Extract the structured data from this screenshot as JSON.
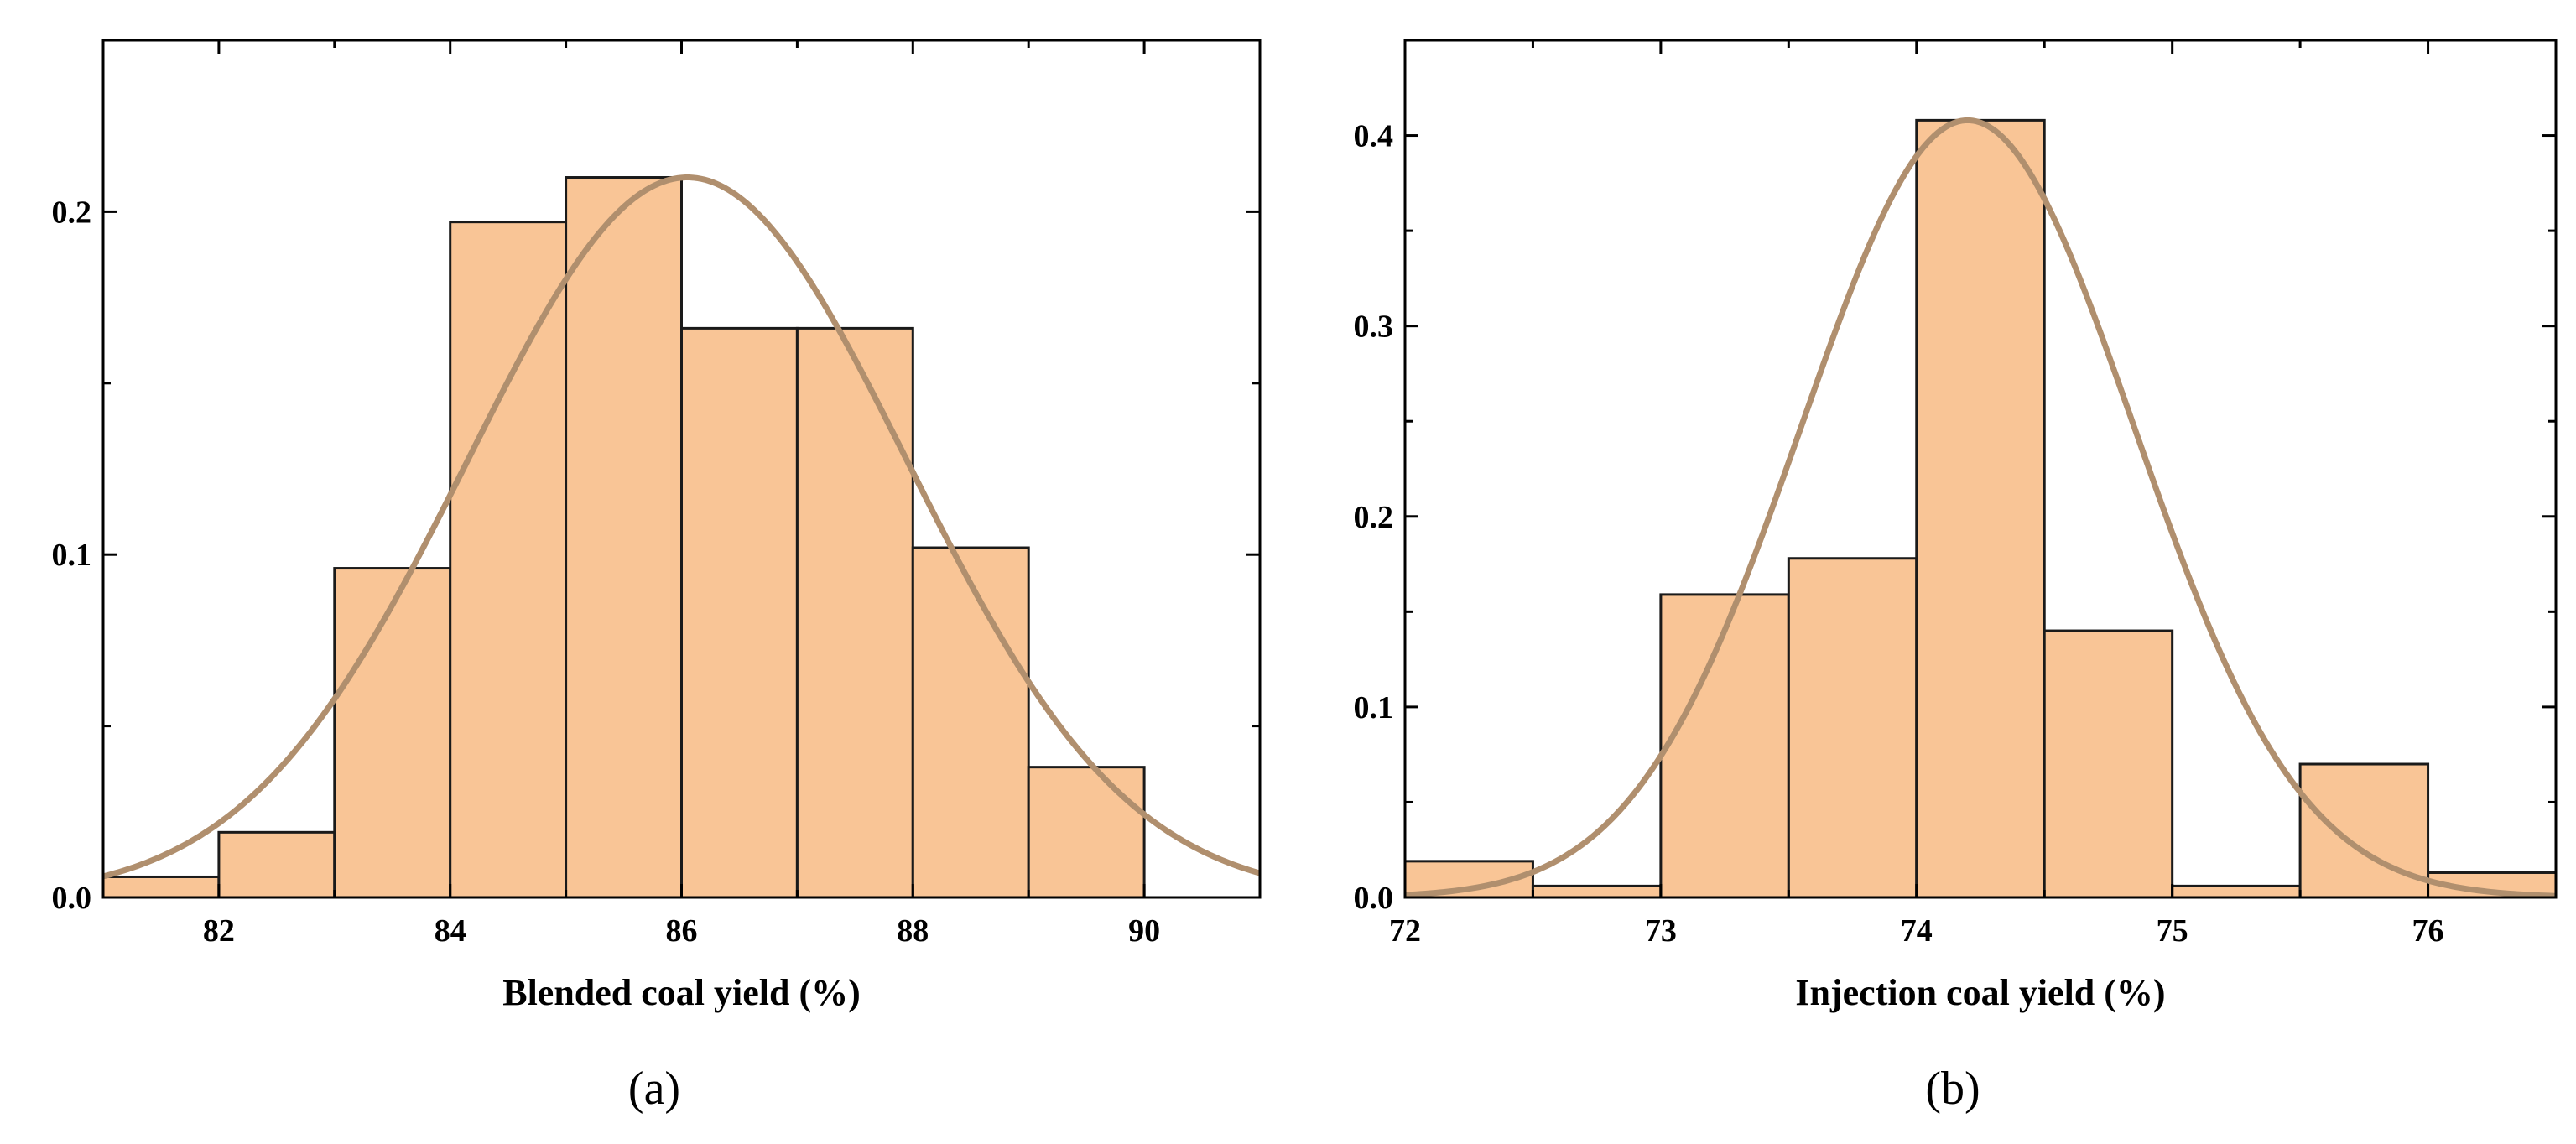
{
  "colors": {
    "bar_fill": "#F9C596",
    "bar_stroke": "#1a1a1a",
    "curve": "#B08F6E",
    "axis": "#000000"
  },
  "chart_data": [
    {
      "type": "bar",
      "subtype": "histogram_with_normal_fit",
      "panel_label": "(a)",
      "title": "",
      "xlabel": "Blended coal yield (%)",
      "ylabel": "",
      "xlim": [
        81,
        91
      ],
      "ylim": [
        0,
        0.25
      ],
      "xticks": [
        82,
        84,
        86,
        88,
        90
      ],
      "xtick_labels": [
        "82",
        "84",
        "86",
        "88",
        "90"
      ],
      "yticks": [
        0,
        0.1,
        0.2
      ],
      "ytick_labels": [
        "0.0",
        "0.1",
        "0.2"
      ],
      "bins": [
        {
          "start": 81,
          "end": 82,
          "value": 0.006
        },
        {
          "start": 82,
          "end": 83,
          "value": 0.019
        },
        {
          "start": 83,
          "end": 84,
          "value": 0.096
        },
        {
          "start": 84,
          "end": 85,
          "value": 0.197
        },
        {
          "start": 85,
          "end": 86,
          "value": 0.21
        },
        {
          "start": 86,
          "end": 87,
          "value": 0.166
        },
        {
          "start": 87,
          "end": 88,
          "value": 0.166
        },
        {
          "start": 88,
          "end": 89,
          "value": 0.102
        },
        {
          "start": 89,
          "end": 90,
          "value": 0.038
        }
      ],
      "normal_fit": {
        "mean": 86.05,
        "sd": 1.9,
        "peak": 0.21
      },
      "grid": false
    },
    {
      "type": "bar",
      "subtype": "histogram_with_normal_fit",
      "panel_label": "(b)",
      "title": "",
      "xlabel": "Injection coal yield (%)",
      "ylabel": "",
      "xlim": [
        72,
        76.5
      ],
      "ylim": [
        0,
        0.45
      ],
      "xticks": [
        72,
        73,
        74,
        75,
        76
      ],
      "xtick_labels": [
        "72",
        "73",
        "74",
        "75",
        "76"
      ],
      "yticks": [
        0,
        0.1,
        0.2,
        0.3,
        0.4
      ],
      "ytick_labels": [
        "0.0",
        "0.1",
        "0.2",
        "0.3",
        "0.4"
      ],
      "bins": [
        {
          "start": 72,
          "end": 72.5,
          "value": 0.019
        },
        {
          "start": 72.5,
          "end": 73,
          "value": 0.006
        },
        {
          "start": 73,
          "end": 73.5,
          "value": 0.159
        },
        {
          "start": 73.5,
          "end": 74,
          "value": 0.178
        },
        {
          "start": 74,
          "end": 74.5,
          "value": 0.408
        },
        {
          "start": 74.5,
          "end": 75,
          "value": 0.14
        },
        {
          "start": 75,
          "end": 75.5,
          "value": 0.006
        },
        {
          "start": 75.5,
          "end": 76,
          "value": 0.07
        },
        {
          "start": 76,
          "end": 76.5,
          "value": 0.013
        }
      ],
      "normal_fit": {
        "mean": 74.2,
        "sd": 0.65,
        "peak": 0.408
      },
      "grid": false
    }
  ]
}
